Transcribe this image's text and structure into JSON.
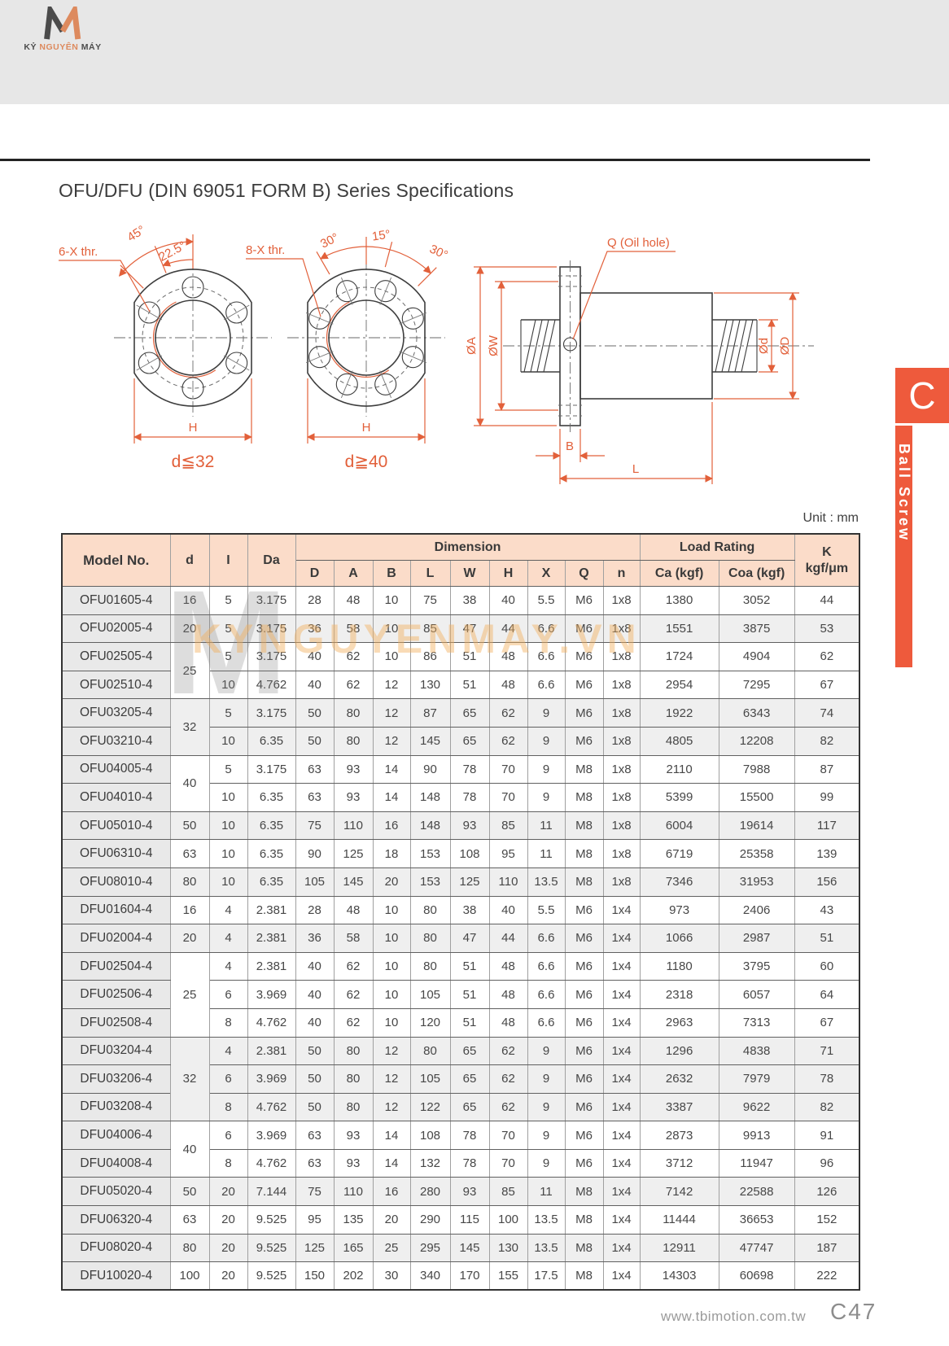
{
  "brand": {
    "name": "KỶ NGUYÊN MÁY",
    "words": [
      "KỶ",
      "NGUYÊN",
      "MÁY"
    ]
  },
  "title": "OFU/DFU (DIN 69051 FORM B) Series Specifications",
  "unit": "Unit : mm",
  "colors": {
    "accent": "#e2603a",
    "tab": "#ee5a3c",
    "header_bg": "#fbdcc9"
  },
  "watermark": {
    "letter": "M",
    "text": "KYNGUYENMAY.VN"
  },
  "side_tab": {
    "letter": "C",
    "label": "Ball Screw"
  },
  "drawings": {
    "flange6": {
      "thread": "6-X thr.",
      "angles": [
        "45°",
        "22.5°"
      ],
      "dim_h": "H",
      "caption": "d≦32"
    },
    "flange8": {
      "thread": "8-X thr.",
      "angles": [
        "30°",
        "15°",
        "30°"
      ],
      "dim_h": "H",
      "caption": "d≧40"
    },
    "side": {
      "oil": "Q  (Oil hole)",
      "dims": [
        "ØA",
        "ØW",
        "Ød",
        "ØD",
        "B",
        "L"
      ]
    }
  },
  "table": {
    "header": {
      "model": "Model No.",
      "d": "d",
      "i": "I",
      "da": "Da",
      "dimension": "Dimension",
      "dim_cols": [
        "D",
        "A",
        "B",
        "L",
        "W",
        "H",
        "X",
        "Q",
        "n"
      ],
      "load": "Load Rating",
      "load_cols": [
        "Ca (kgf)",
        "Coa (kgf)"
      ],
      "k1": "K",
      "k2": "kgf/μm"
    },
    "rows": [
      {
        "model": "OFU01605-4",
        "d": "16",
        "dspan": 1,
        "shade": false,
        "vals": [
          "5",
          "3.175",
          "28",
          "48",
          "10",
          "75",
          "38",
          "40",
          "5.5",
          "M6",
          "1x8",
          "1380",
          "3052",
          "44"
        ]
      },
      {
        "model": "OFU02005-4",
        "d": "20",
        "dspan": 1,
        "shade": true,
        "vals": [
          "5",
          "3.175",
          "36",
          "58",
          "10",
          "85",
          "47",
          "44",
          "6.6",
          "M6",
          "1x8",
          "1551",
          "3875",
          "53"
        ]
      },
      {
        "model": "OFU02505-4",
        "d": "25",
        "dspan": 2,
        "shade": false,
        "vals": [
          "5",
          "3.175",
          "40",
          "62",
          "10",
          "86",
          "51",
          "48",
          "6.6",
          "M6",
          "1x8",
          "1724",
          "4904",
          "62"
        ]
      },
      {
        "model": "OFU02510-4",
        "shade": false,
        "vals": [
          "10",
          "4.762",
          "40",
          "62",
          "12",
          "130",
          "51",
          "48",
          "6.6",
          "M6",
          "1x8",
          "2954",
          "7295",
          "67"
        ]
      },
      {
        "model": "OFU03205-4",
        "d": "32",
        "dspan": 2,
        "shade": true,
        "vals": [
          "5",
          "3.175",
          "50",
          "80",
          "12",
          "87",
          "65",
          "62",
          "9",
          "M6",
          "1x8",
          "1922",
          "6343",
          "74"
        ]
      },
      {
        "model": "OFU03210-4",
        "shade": true,
        "vals": [
          "10",
          "6.35",
          "50",
          "80",
          "12",
          "145",
          "65",
          "62",
          "9",
          "M6",
          "1x8",
          "4805",
          "12208",
          "82"
        ]
      },
      {
        "model": "OFU04005-4",
        "d": "40",
        "dspan": 2,
        "shade": false,
        "vals": [
          "5",
          "3.175",
          "63",
          "93",
          "14",
          "90",
          "78",
          "70",
          "9",
          "M8",
          "1x8",
          "2110",
          "7988",
          "87"
        ]
      },
      {
        "model": "OFU04010-4",
        "shade": false,
        "vals": [
          "10",
          "6.35",
          "63",
          "93",
          "14",
          "148",
          "78",
          "70",
          "9",
          "M8",
          "1x8",
          "5399",
          "15500",
          "99"
        ]
      },
      {
        "model": "OFU05010-4",
        "d": "50",
        "dspan": 1,
        "shade": true,
        "vals": [
          "10",
          "6.35",
          "75",
          "110",
          "16",
          "148",
          "93",
          "85",
          "11",
          "M8",
          "1x8",
          "6004",
          "19614",
          "117"
        ]
      },
      {
        "model": "OFU06310-4",
        "d": "63",
        "dspan": 1,
        "shade": false,
        "vals": [
          "10",
          "6.35",
          "90",
          "125",
          "18",
          "153",
          "108",
          "95",
          "11",
          "M8",
          "1x8",
          "6719",
          "25358",
          "139"
        ]
      },
      {
        "model": "OFU08010-4",
        "d": "80",
        "dspan": 1,
        "shade": true,
        "vals": [
          "10",
          "6.35",
          "105",
          "145",
          "20",
          "153",
          "125",
          "110",
          "13.5",
          "M8",
          "1x8",
          "7346",
          "31953",
          "156"
        ]
      },
      {
        "model": "DFU01604-4",
        "d": "16",
        "dspan": 1,
        "shade": false,
        "vals": [
          "4",
          "2.381",
          "28",
          "48",
          "10",
          "80",
          "38",
          "40",
          "5.5",
          "M6",
          "1x4",
          "973",
          "2406",
          "43"
        ]
      },
      {
        "model": "DFU02004-4",
        "d": "20",
        "dspan": 1,
        "shade": true,
        "vals": [
          "4",
          "2.381",
          "36",
          "58",
          "10",
          "80",
          "47",
          "44",
          "6.6",
          "M6",
          "1x4",
          "1066",
          "2987",
          "51"
        ]
      },
      {
        "model": "DFU02504-4",
        "d": "25",
        "dspan": 3,
        "shade": false,
        "vals": [
          "4",
          "2.381",
          "40",
          "62",
          "10",
          "80",
          "51",
          "48",
          "6.6",
          "M6",
          "1x4",
          "1180",
          "3795",
          "60"
        ]
      },
      {
        "model": "DFU02506-4",
        "shade": false,
        "vals": [
          "6",
          "3.969",
          "40",
          "62",
          "10",
          "105",
          "51",
          "48",
          "6.6",
          "M6",
          "1x4",
          "2318",
          "6057",
          "64"
        ]
      },
      {
        "model": "DFU02508-4",
        "shade": false,
        "vals": [
          "8",
          "4.762",
          "40",
          "62",
          "10",
          "120",
          "51",
          "48",
          "6.6",
          "M6",
          "1x4",
          "2963",
          "7313",
          "67"
        ]
      },
      {
        "model": "DFU03204-4",
        "d": "32",
        "dspan": 3,
        "shade": true,
        "vals": [
          "4",
          "2.381",
          "50",
          "80",
          "12",
          "80",
          "65",
          "62",
          "9",
          "M6",
          "1x4",
          "1296",
          "4838",
          "71"
        ]
      },
      {
        "model": "DFU03206-4",
        "shade": true,
        "vals": [
          "6",
          "3.969",
          "50",
          "80",
          "12",
          "105",
          "65",
          "62",
          "9",
          "M6",
          "1x4",
          "2632",
          "7979",
          "78"
        ]
      },
      {
        "model": "DFU03208-4",
        "shade": true,
        "vals": [
          "8",
          "4.762",
          "50",
          "80",
          "12",
          "122",
          "65",
          "62",
          "9",
          "M6",
          "1x4",
          "3387",
          "9622",
          "82"
        ]
      },
      {
        "model": "DFU04006-4",
        "d": "40",
        "dspan": 2,
        "shade": false,
        "vals": [
          "6",
          "3.969",
          "63",
          "93",
          "14",
          "108",
          "78",
          "70",
          "9",
          "M6",
          "1x4",
          "2873",
          "9913",
          "91"
        ]
      },
      {
        "model": "DFU04008-4",
        "shade": false,
        "vals": [
          "8",
          "4.762",
          "63",
          "93",
          "14",
          "132",
          "78",
          "70",
          "9",
          "M6",
          "1x4",
          "3712",
          "11947",
          "96"
        ]
      },
      {
        "model": "DFU05020-4",
        "d": "50",
        "dspan": 1,
        "shade": true,
        "vals": [
          "20",
          "7.144",
          "75",
          "110",
          "16",
          "280",
          "93",
          "85",
          "11",
          "M8",
          "1x4",
          "7142",
          "22588",
          "126"
        ]
      },
      {
        "model": "DFU06320-4",
        "d": "63",
        "dspan": 1,
        "shade": false,
        "vals": [
          "20",
          "9.525",
          "95",
          "135",
          "20",
          "290",
          "115",
          "100",
          "13.5",
          "M8",
          "1x4",
          "11444",
          "36653",
          "152"
        ]
      },
      {
        "model": "DFU08020-4",
        "d": "80",
        "dspan": 1,
        "shade": true,
        "vals": [
          "20",
          "9.525",
          "125",
          "165",
          "25",
          "295",
          "145",
          "130",
          "13.5",
          "M8",
          "1x4",
          "12911",
          "47747",
          "187"
        ]
      },
      {
        "model": "DFU10020-4",
        "d": "100",
        "dspan": 1,
        "shade": false,
        "vals": [
          "20",
          "9.525",
          "150",
          "202",
          "30",
          "340",
          "170",
          "155",
          "17.5",
          "M8",
          "1x4",
          "14303",
          "60698",
          "222"
        ]
      }
    ]
  },
  "footer": {
    "url": "www.tbimotion.com.tw",
    "page": "C47"
  }
}
